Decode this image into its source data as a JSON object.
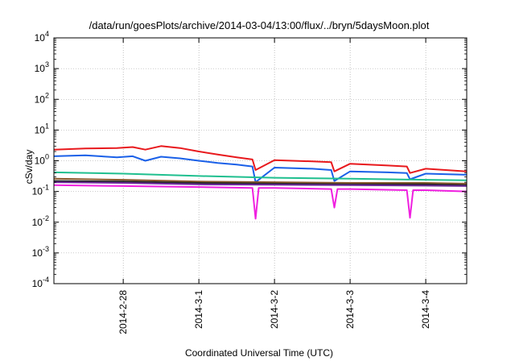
{
  "chart_data": {
    "type": "line",
    "title": "/data/run/goesPlots/archive/2014-03-04/13:00/flux/../bryn/5daysMoon.plot",
    "xlabel": "Coordinated Universal Time (UTC)",
    "ylabel": "cSv/day",
    "yscale": "log",
    "ylim": [
      0.0001,
      10000
    ],
    "y_ticks": [
      {
        "base": "10",
        "exp": "-4",
        "value": 0.0001
      },
      {
        "base": "10",
        "exp": "-3",
        "value": 0.001
      },
      {
        "base": "10",
        "exp": "-2",
        "value": 0.01
      },
      {
        "base": "10",
        "exp": "-1",
        "value": 0.1
      },
      {
        "base": "10",
        "exp": "0",
        "value": 1
      },
      {
        "base": "10",
        "exp": "1",
        "value": 10
      },
      {
        "base": "10",
        "exp": "2",
        "value": 100
      },
      {
        "base": "10",
        "exp": "3",
        "value": 1000
      },
      {
        "base": "10",
        "exp": "4",
        "value": 10000
      }
    ],
    "xlim": [
      "2014-02-27 02:00",
      "2014-03-04 13:00"
    ],
    "x_ticks": [
      "2014-2-28",
      "2014-3-1",
      "2014-3-2",
      "2014-3-3",
      "2014-3-4"
    ],
    "grid": true,
    "series": [
      {
        "color": "#e8191d",
        "x": [
          "2014-02-27 02:00",
          "2014-02-27 12:00",
          "2014-02-27 22:00",
          "2014-02-28 03:00",
          "2014-02-28 07:00",
          "2014-02-28 12:00",
          "2014-02-28 18:00",
          "2014-03-01 00:00",
          "2014-03-01 06:00",
          "2014-03-01 12:00",
          "2014-03-01 17:00",
          "2014-03-01 18:00",
          "2014-03-02 00:00",
          "2014-03-02 12:00",
          "2014-03-02 18:00",
          "2014-03-02 19:00",
          "2014-03-03 00:00",
          "2014-03-03 12:00",
          "2014-03-03 18:00",
          "2014-03-03 19:00",
          "2014-03-04 00:00",
          "2014-03-04 13:00"
        ],
        "y": [
          2.3,
          2.5,
          2.6,
          2.8,
          2.3,
          3.0,
          2.6,
          2.0,
          1.6,
          1.3,
          1.1,
          0.5,
          1.05,
          0.95,
          0.9,
          0.45,
          0.8,
          0.7,
          0.65,
          0.4,
          0.55,
          0.45
        ]
      },
      {
        "color": "#1a60e8",
        "x": [
          "2014-02-27 02:00",
          "2014-02-27 12:00",
          "2014-02-27 22:00",
          "2014-02-28 03:00",
          "2014-02-28 07:00",
          "2014-02-28 12:00",
          "2014-02-28 18:00",
          "2014-03-01 00:00",
          "2014-03-01 06:00",
          "2014-03-01 12:00",
          "2014-03-01 17:00",
          "2014-03-01 18:00",
          "2014-03-02 00:00",
          "2014-03-02 12:00",
          "2014-03-02 18:00",
          "2014-03-02 19:00",
          "2014-03-03 00:00",
          "2014-03-03 12:00",
          "2014-03-03 18:00",
          "2014-03-03 19:00",
          "2014-03-04 00:00",
          "2014-03-04 13:00"
        ],
        "y": [
          1.4,
          1.5,
          1.3,
          1.4,
          1.0,
          1.35,
          1.2,
          1.0,
          0.85,
          0.75,
          0.65,
          0.2,
          0.6,
          0.55,
          0.5,
          0.22,
          0.45,
          0.42,
          0.4,
          0.25,
          0.38,
          0.35
        ]
      },
      {
        "color": "#1fbf8f",
        "x": [
          "2014-02-27 02:00",
          "2014-02-28 00:00",
          "2014-03-01 00:00",
          "2014-03-02 00:00",
          "2014-03-03 00:00",
          "2014-03-04 00:00",
          "2014-03-04 13:00"
        ],
        "y": [
          0.42,
          0.38,
          0.32,
          0.28,
          0.26,
          0.24,
          0.23
        ]
      },
      {
        "color": "#8b5a2b",
        "x": [
          "2014-02-27 02:00",
          "2014-02-28 00:00",
          "2014-03-01 00:00",
          "2014-03-02 00:00",
          "2014-03-03 00:00",
          "2014-03-04 00:00",
          "2014-03-04 13:00"
        ],
        "y": [
          0.26,
          0.24,
          0.21,
          0.2,
          0.19,
          0.19,
          0.18
        ]
      },
      {
        "color": "#222222",
        "x": [
          "2014-02-27 02:00",
          "2014-02-28 00:00",
          "2014-03-01 00:00",
          "2014-03-02 00:00",
          "2014-03-03 00:00",
          "2014-03-04 00:00",
          "2014-03-04 13:00"
        ],
        "y": [
          0.22,
          0.21,
          0.19,
          0.18,
          0.17,
          0.17,
          0.16
        ]
      },
      {
        "color": "#6a2a9a",
        "x": [
          "2014-02-27 02:00",
          "2014-02-28 00:00",
          "2014-03-01 00:00",
          "2014-03-02 00:00",
          "2014-03-03 00:00",
          "2014-03-04 00:00",
          "2014-03-04 13:00"
        ],
        "y": [
          0.2,
          0.19,
          0.17,
          0.165,
          0.16,
          0.155,
          0.15
        ]
      },
      {
        "color": "#f020e0",
        "x": [
          "2014-02-27 02:00",
          "2014-02-28 00:00",
          "2014-03-01 00:00",
          "2014-03-01 17:00",
          "2014-03-01 18:00",
          "2014-03-01 19:00",
          "2014-03-02 00:00",
          "2014-03-02 18:00",
          "2014-03-02 19:00",
          "2014-03-02 20:00",
          "2014-03-03 00:00",
          "2014-03-03 18:00",
          "2014-03-03 19:00",
          "2014-03-03 20:00",
          "2014-03-04 00:00",
          "2014-03-04 13:00"
        ],
        "y": [
          0.16,
          0.15,
          0.14,
          0.13,
          0.013,
          0.13,
          0.13,
          0.12,
          0.03,
          0.12,
          0.12,
          0.11,
          0.014,
          0.11,
          0.11,
          0.1
        ]
      }
    ]
  }
}
